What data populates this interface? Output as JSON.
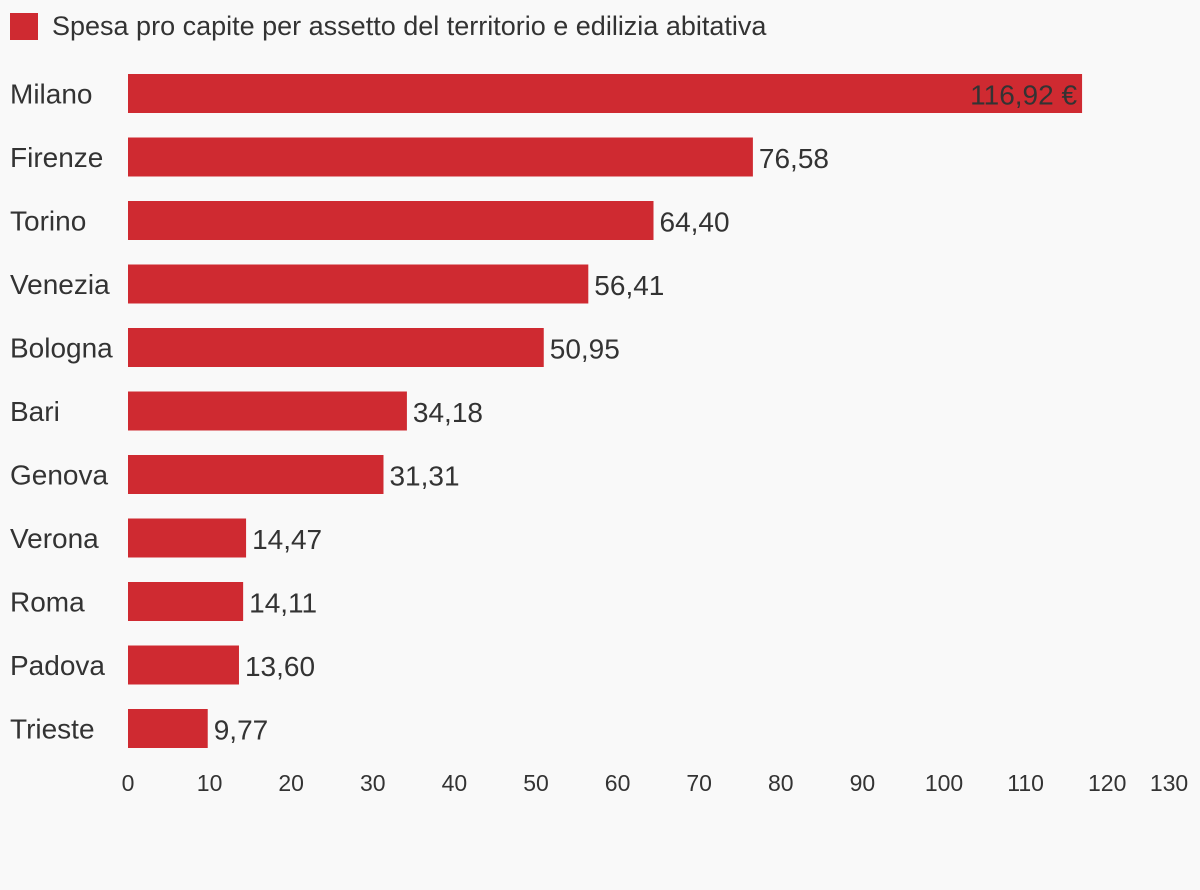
{
  "chart_data": {
    "type": "bar",
    "orientation": "horizontal",
    "legend": {
      "label": "Spesa pro capite per assetto del territorio e edilizia abitativa",
      "placement": "top-left"
    },
    "categories": [
      "Milano",
      "Firenze",
      "Torino",
      "Venezia",
      "Bologna",
      "Bari",
      "Genova",
      "Verona",
      "Roma",
      "Padova",
      "Trieste"
    ],
    "values": [
      116.92,
      76.58,
      64.4,
      56.41,
      50.95,
      34.18,
      31.31,
      14.47,
      14.11,
      13.6,
      9.77
    ],
    "value_labels": [
      "116,92 €",
      "76,58",
      "64,40",
      "56,41",
      "50,95",
      "34,18",
      "31,31",
      "14,47",
      "14,11",
      "13,60",
      "9,77"
    ],
    "xlim": [
      0,
      130
    ],
    "x_ticks": [
      0,
      10,
      20,
      30,
      40,
      50,
      60,
      70,
      80,
      90,
      100,
      110,
      120,
      130
    ],
    "grid": false,
    "colors": {
      "bar": "#cf2a31",
      "text": "#333333",
      "background": "#f9f9f9"
    }
  }
}
